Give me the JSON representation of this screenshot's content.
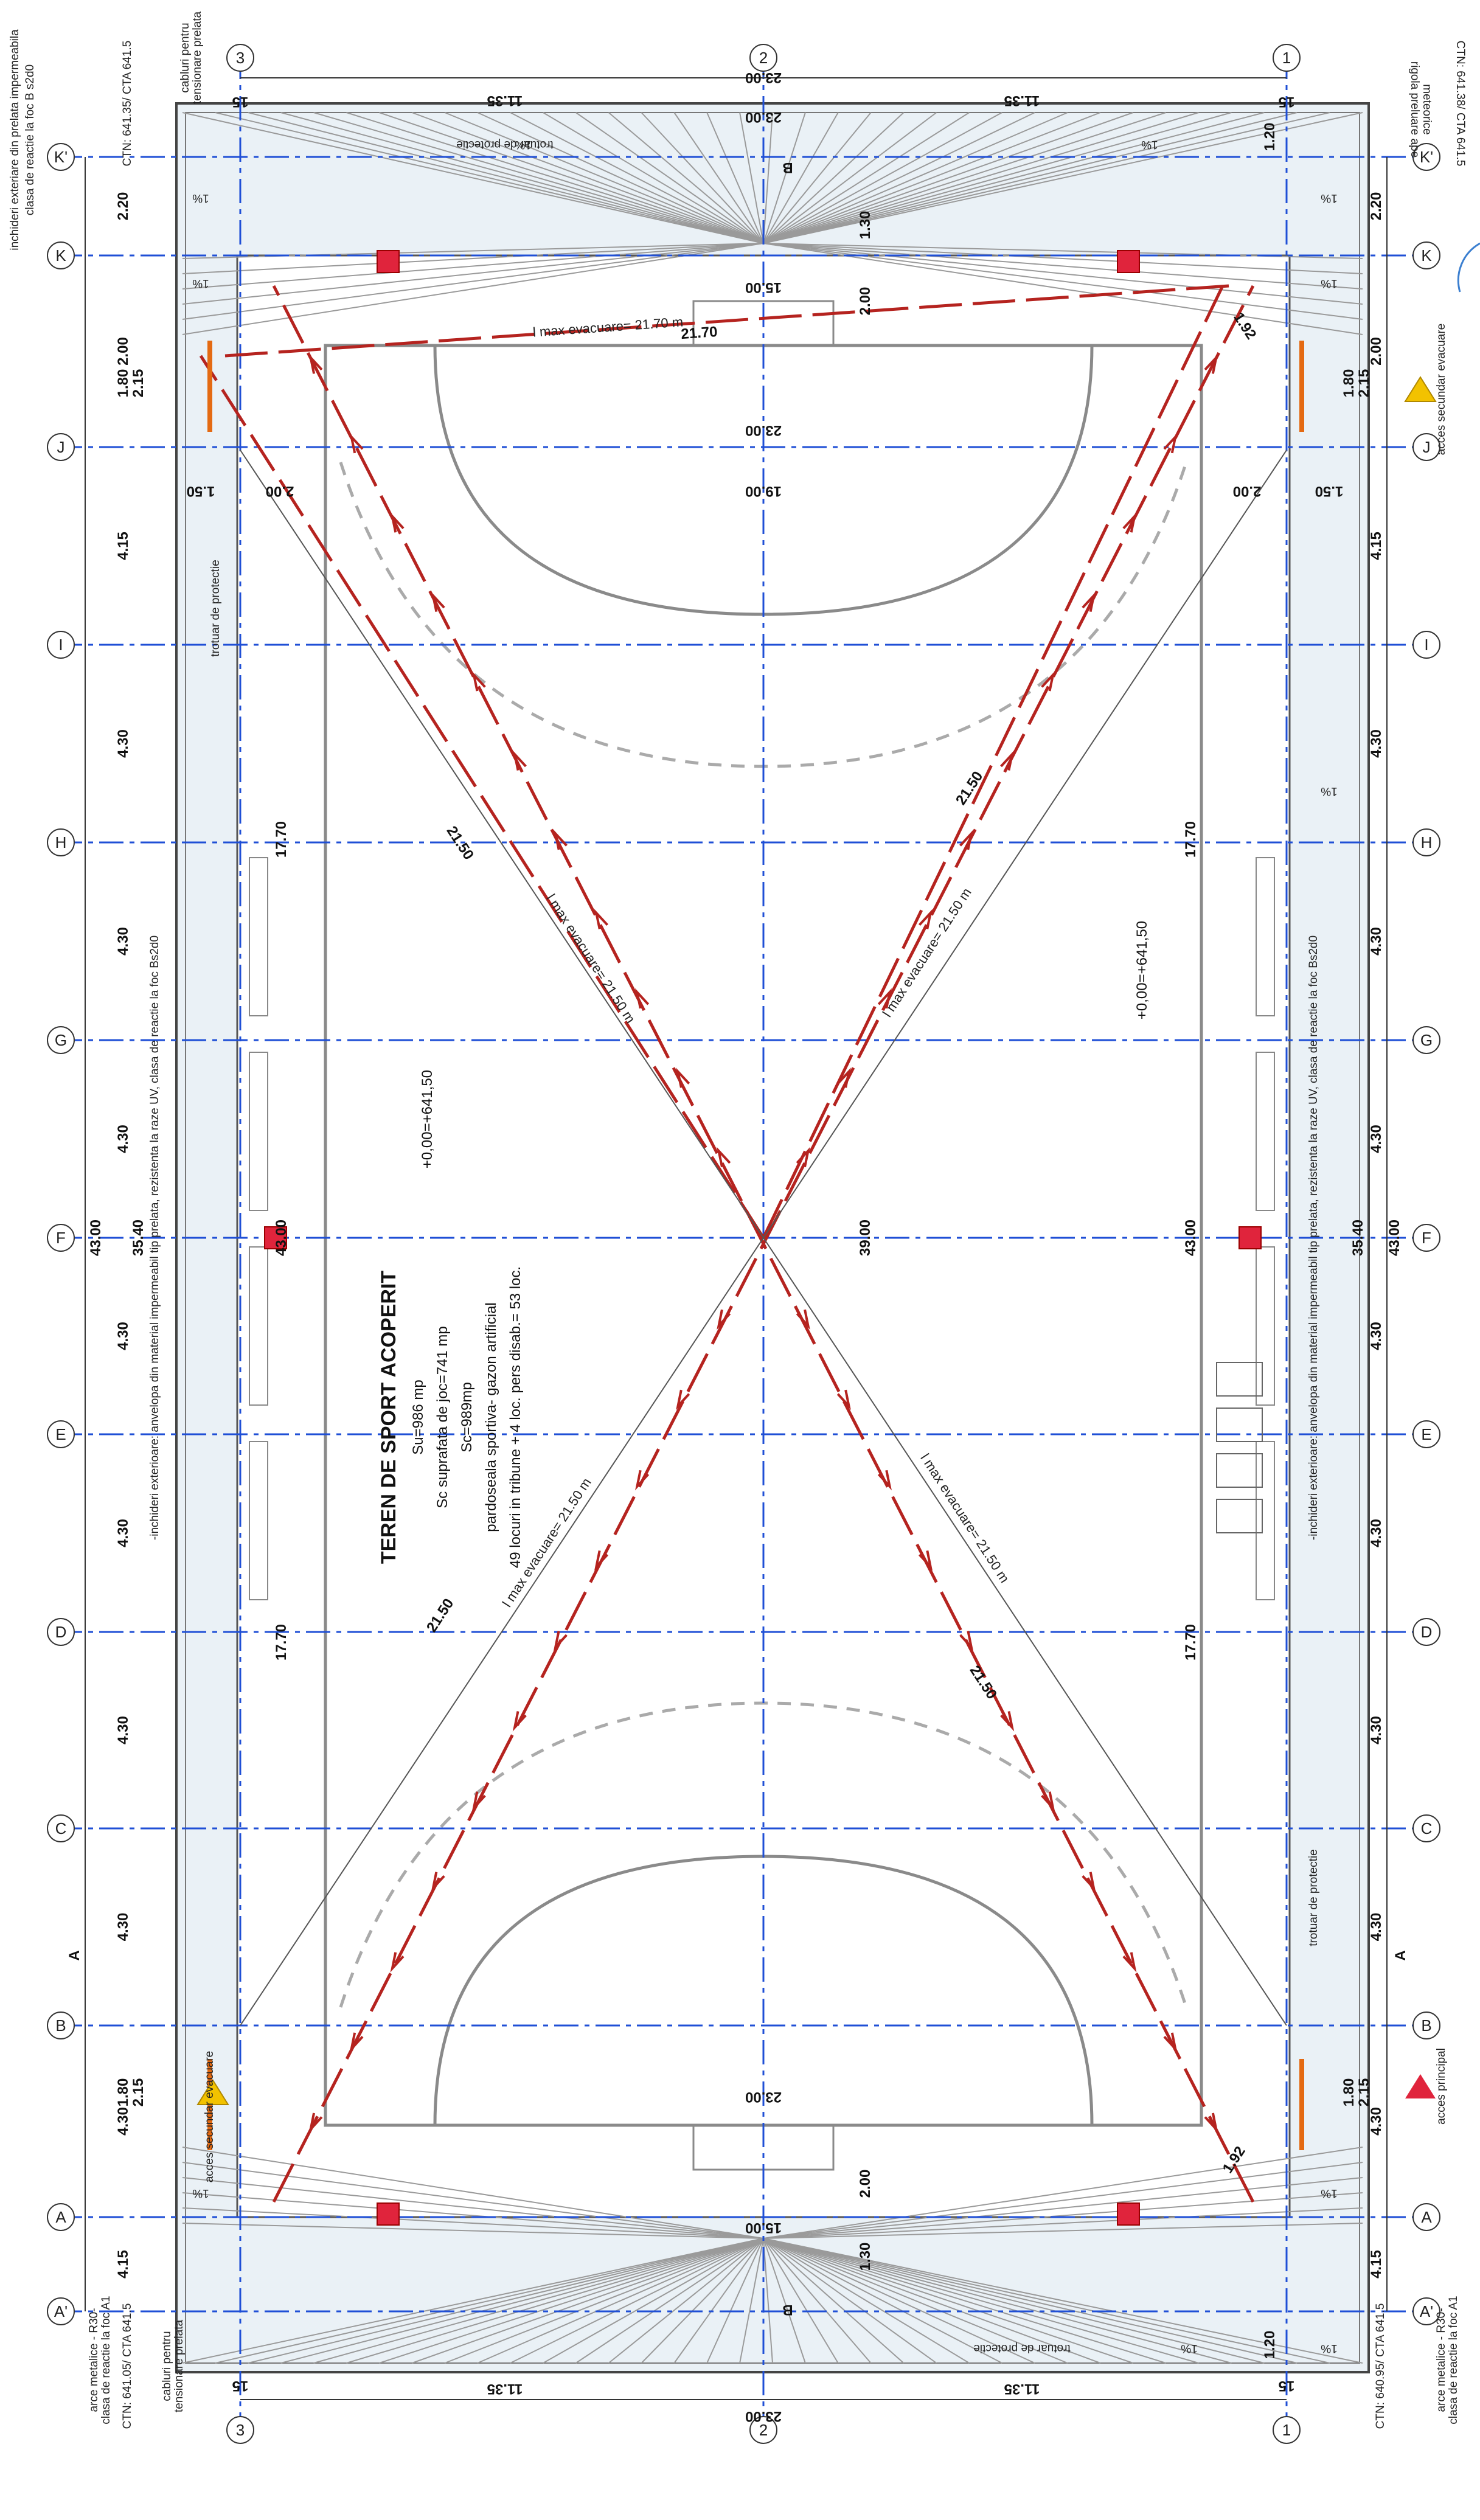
{
  "plan": {
    "title": "TEREN DE SPORT ACOPERIT",
    "info_lines": [
      "Su=986 mp",
      "Sc suprafata de joc=741 mp",
      "Sc=989mp",
      "pardoseala sportiva- gazon artificial",
      "49 locuri in tribune + 4 loc. pers disab.= 53 loc."
    ],
    "level_left": "+0,00=+641,50",
    "level_right": "+0,00=+641,50",
    "grid_rows": [
      "K'",
      "K",
      "J",
      "I",
      "H",
      "G",
      "F",
      "E",
      "D",
      "C",
      "B",
      "A",
      "A'"
    ],
    "grid_cols": [
      "3",
      "2",
      "1"
    ],
    "row_spacings": [
      "2.20",
      "2.00",
      "4.15",
      "4.30",
      "4.30",
      "4.30",
      "4.30",
      "4.30",
      "4.30",
      "4.30",
      "4.30",
      "4.15",
      "2.00",
      "2.20"
    ],
    "col_spacings": [
      "11.35",
      "11.35"
    ],
    "overall_dims": {
      "width": "23.00",
      "length_left": "43.00",
      "length_right": "43.00",
      "inner_35": "35.40",
      "inner_39": "39.00",
      "inner_1770": "17.70",
      "court_width": "19.00",
      "goal_width": "15.00",
      "short_1": "1.50",
      "short_2": "1.80",
      "short_3": "2.15",
      "short_4": "1.20",
      "short_5": "1.30",
      "short_6": "15"
    },
    "evac_labels": [
      "l max evacuare= 21.70 m",
      "l max evacuare= 21.50 m",
      "l max evacuare= 21.50 m",
      "l max evacuare= 21.50 m",
      "l max evacuare= 21.50 m"
    ],
    "evac_dim_2170": "21.70",
    "evac_dim_2150": "21.50",
    "dim_192": "1.92",
    "slope": "1%",
    "notes": {
      "top_left_1": "inchideri exteriare din prelata impermeabila",
      "top_left_2": "clasa de reactie la foc B s2d0",
      "top_cablu_1": "cabluri pentru",
      "top_cablu_2": "tensionare prelata",
      "top_ctn": "CTN: 641.35/ CTA 641.5",
      "top_right_ctn": "CTN: 641.38/ CTA 641.5",
      "top_right_rigola_1": "rigola preluare ape",
      "top_right_rigola_2": "meteorice",
      "left_envelope": "-inchideri exterioare: anvelopa din material impermeabil tip prelata, rezistenta la raze UV, clasa de reactie la foc Bs2d0",
      "right_envelope": "-inchideri exterioare: anvelopa din material impermeabil tip prelata, rezistenta la raze UV, clasa de reactie la foc Bs2d0",
      "trotuar": "trotuar de protectie",
      "bottom_left_arce_1": "arce metalice - R30-",
      "bottom_left_arce_2": "clasa de reactie la foc A1",
      "bottom_left_ctn": "CTN: 641.05/ CTA 641.5",
      "bottom_cablu_1": "cabluri pentru",
      "bottom_cablu_2": "tensionare prelata",
      "bottom_right_ctn": "CTN: 640.95/ CTA 641.5",
      "bottom_right_arce_1": "arce metalice - R30-",
      "bottom_right_arce_2": "clasa de reactie la foc A1",
      "acces_secundar": "acces secundar evacuare",
      "acces_principal": "acces principal"
    },
    "section_marks": [
      "A",
      "A",
      "B",
      "B"
    ],
    "colors": {
      "axis": "#1f4fd6",
      "evac": "#b5231f",
      "court": "#8a8a8a",
      "dim": "#333333",
      "exit": "#e0243c",
      "door": "#e46a12",
      "warning": "#f2c200",
      "paper": "#ffffff",
      "roof_fill": "#eaf1f6"
    }
  }
}
